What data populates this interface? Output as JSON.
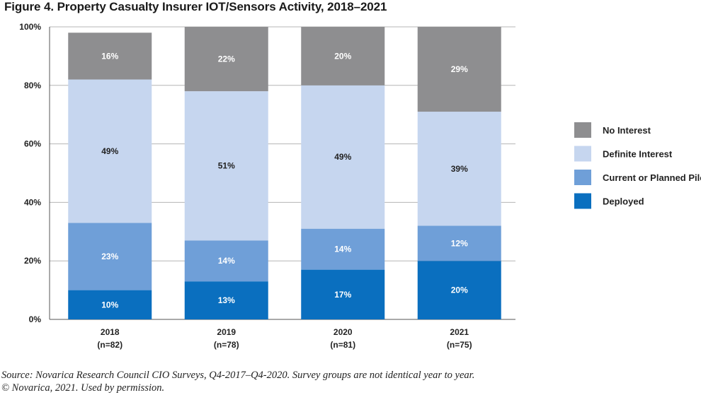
{
  "chart_data": {
    "type": "bar",
    "stacked": true,
    "title": "Figure 4. Property Casualty Insurer IOT/Sensors Activity, 2018–2021",
    "categories": [
      "2018",
      "2019",
      "2020",
      "2021"
    ],
    "category_sublabels": [
      "(n=82)",
      "(n=78)",
      "(n=81)",
      "(n=75)"
    ],
    "series": [
      {
        "name": "Deployed",
        "values": [
          10,
          13,
          17,
          20
        ],
        "labels": [
          "10%",
          "13%",
          "17%",
          "20%"
        ],
        "color": "#0a6fbf",
        "label_color": "#ffffff"
      },
      {
        "name": "Current or Planned Pilot",
        "values": [
          23,
          14,
          14,
          12
        ],
        "labels": [
          "23%",
          "14%",
          "14%",
          "12%"
        ],
        "color": "#6f9fd8",
        "label_color": "#ffffff"
      },
      {
        "name": "Definite Interest",
        "values": [
          49,
          51,
          49,
          39
        ],
        "labels": [
          "49%",
          "51%",
          "49%",
          "39%"
        ],
        "color": "#c6d6ef",
        "label_color": "#222222"
      },
      {
        "name": "No Interest",
        "values": [
          16,
          22,
          20,
          29
        ],
        "labels": [
          "16%",
          "22%",
          "20%",
          "29%"
        ],
        "color": "#8e8e90",
        "label_color": "#ffffff"
      }
    ],
    "ylim": [
      0,
      100
    ],
    "yticks": [
      0,
      20,
      40,
      60,
      80,
      100
    ],
    "ytick_labels": [
      "0%",
      "20%",
      "40%",
      "60%",
      "80%",
      "100%"
    ],
    "grid": true,
    "legend": {
      "position": "right",
      "order": [
        "No Interest",
        "Definite Interest",
        "Current or Planned Pilot",
        "Deployed"
      ]
    }
  },
  "source_line1": "Source: Novarica Research Council CIO Surveys, Q4-2017–Q4-2020. Survey groups are not identical year to year.",
  "source_line2": "© Novarica, 2021. Used by permission."
}
